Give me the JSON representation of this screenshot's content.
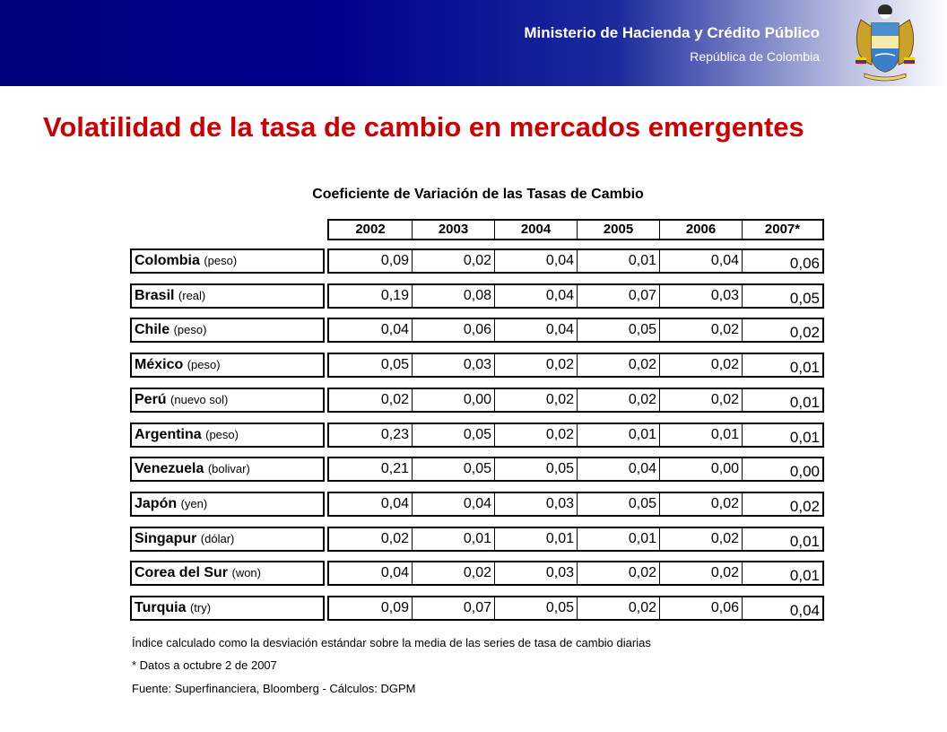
{
  "header": {
    "ministry": "Ministerio de Hacienda y Crédito Público",
    "republic": "República de Colombia",
    "crest_icon": "colombia-coat-of-arms-icon"
  },
  "title": "Volatilidad de la tasa de cambio en mercados emergentes",
  "table": {
    "title": "Coeficiente de Variación de las Tasas de Cambio",
    "years": [
      "2002",
      "2003",
      "2004",
      "2005",
      "2006",
      "2007*"
    ],
    "rows": [
      {
        "country": "Colombia",
        "currency": "(peso)",
        "values": [
          "0,09",
          "0,02",
          "0,04",
          "0,01",
          "0,04",
          "0,06"
        ]
      },
      {
        "country": "Brasil",
        "currency": "(real)",
        "values": [
          "0,19",
          "0,08",
          "0,04",
          "0,07",
          "0,03",
          "0,05"
        ]
      },
      {
        "country": "Chile",
        "currency": "(peso)",
        "values": [
          "0,04",
          "0,06",
          "0,04",
          "0,05",
          "0,02",
          "0,02"
        ]
      },
      {
        "country": "México",
        "currency": "(peso)",
        "values": [
          "0,05",
          "0,03",
          "0,02",
          "0,02",
          "0,02",
          "0,01"
        ]
      },
      {
        "country": "Perú",
        "currency": "(nuevo sol)",
        "values": [
          "0,02",
          "0,00",
          "0,02",
          "0,02",
          "0,02",
          "0,01"
        ]
      },
      {
        "country": "Argentina",
        "currency": "(peso)",
        "values": [
          "0,23",
          "0,05",
          "0,02",
          "0,01",
          "0,01",
          "0,01"
        ]
      },
      {
        "country": "Venezuela",
        "currency": "(bolivar)",
        "values": [
          "0,21",
          "0,05",
          "0,05",
          "0,04",
          "0,00",
          "0,00"
        ]
      },
      {
        "country": "Japón",
        "currency": "(yen)",
        "values": [
          "0,04",
          "0,04",
          "0,03",
          "0,05",
          "0,02",
          "0,02"
        ]
      },
      {
        "country": "Singapur",
        "currency": "(dólar)",
        "values": [
          "0,02",
          "0,01",
          "0,01",
          "0,01",
          "0,02",
          "0,01"
        ]
      },
      {
        "country": "Corea del Sur",
        "currency": "(won)",
        "values": [
          "0,04",
          "0,02",
          "0,03",
          "0,02",
          "0,02",
          "0,01"
        ]
      },
      {
        "country": "Turquia",
        "currency": "(try)",
        "values": [
          "0,09",
          "0,07",
          "0,05",
          "0,02",
          "0,06",
          "0,04"
        ]
      }
    ]
  },
  "notes": [
    "Índice calculado como la desviación estándar sobre la media de las series de tasa de cambio diarias",
    "* Datos a octubre 2 de 2007",
    "Fuente: Superfinanciera, Bloomberg - Cálculos: DGPM"
  ]
}
